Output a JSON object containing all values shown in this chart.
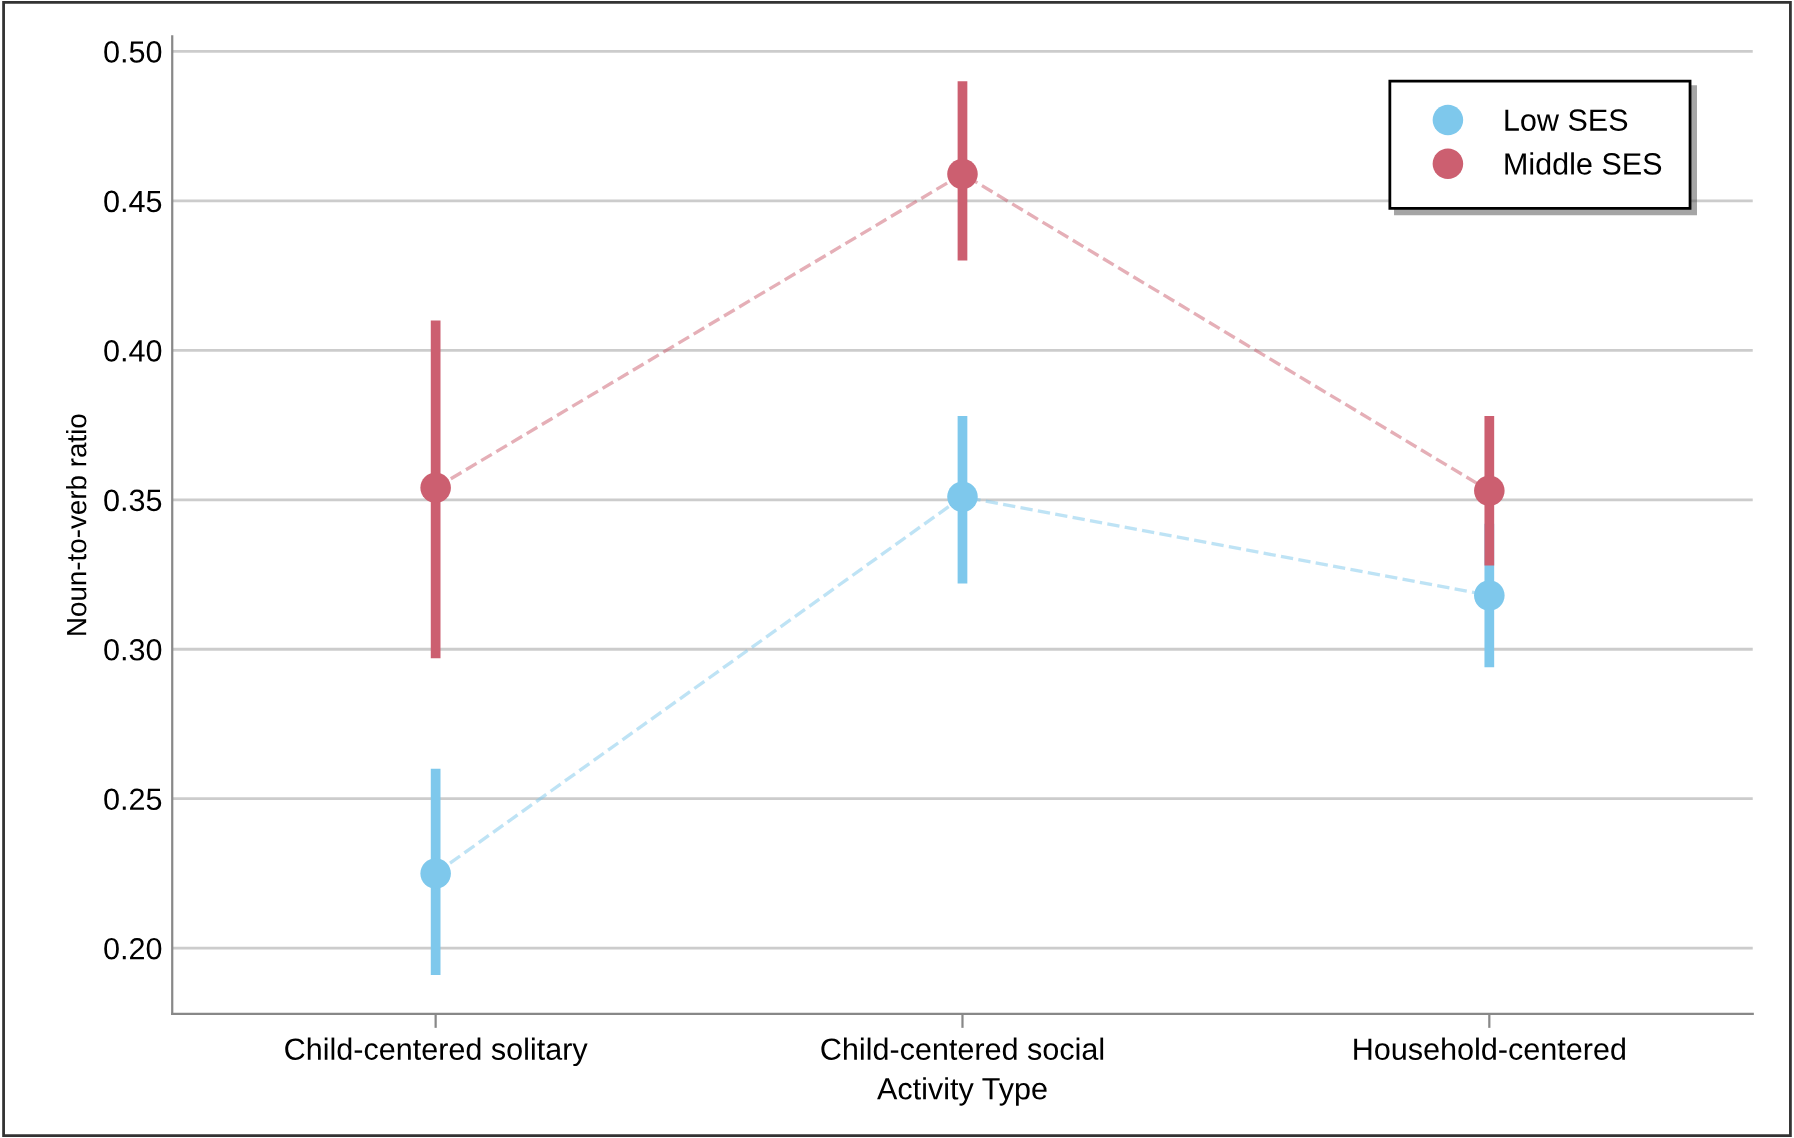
{
  "chart_data": {
    "type": "line",
    "xlabel": "Activity Type",
    "ylabel": "Noun-to-verb ratio",
    "categories": [
      "Child-centered solitary",
      "Child-centered social",
      "Household-centered"
    ],
    "series": [
      {
        "name": "Low SES",
        "color": "#7ec8ec",
        "values": [
          0.225,
          0.351,
          0.318
        ],
        "errors": [
          [
            0.191,
            0.26
          ],
          [
            0.322,
            0.378
          ],
          [
            0.294,
            0.342
          ]
        ]
      },
      {
        "name": "Middle SES",
        "color": "#cc5f70",
        "values": [
          0.354,
          0.459,
          0.353
        ],
        "errors": [
          [
            0.297,
            0.41
          ],
          [
            0.43,
            0.49
          ],
          [
            0.328,
            0.378
          ]
        ]
      }
    ],
    "ylim": [
      0.178,
      0.505
    ],
    "yticks": [
      {
        "value": 0.2,
        "label": "0.20"
      },
      0.25,
      {
        "value": 0.3,
        "label": "0.30"
      },
      0.35,
      {
        "value": 0.4,
        "label": "0.40"
      },
      0.45,
      {
        "value": 0.5,
        "label": "0.50"
      }
    ],
    "grid": "y",
    "legend": "top right",
    "marker": "circle",
    "line_style": "dashed"
  }
}
